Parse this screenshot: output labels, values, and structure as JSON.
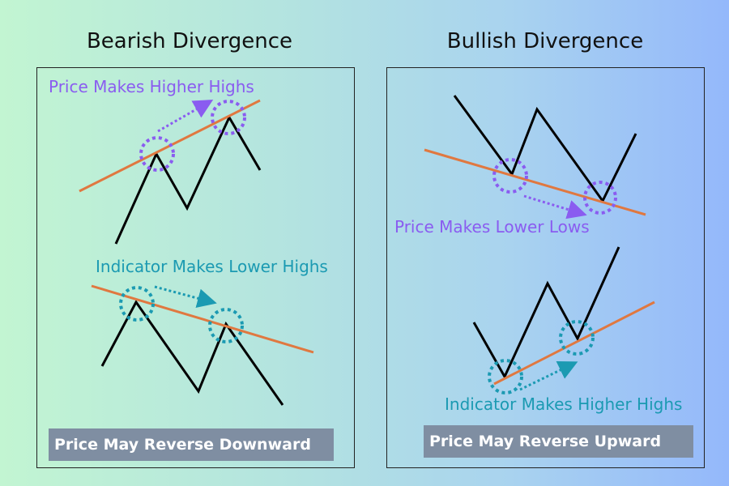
{
  "titles": {
    "left": "Bearish Divergence",
    "right": "Bullish Divergence"
  },
  "labels": {
    "bear_price": "Price Makes Higher Highs",
    "bear_indicator": "Indicator Makes Lower Highs",
    "bull_price": "Price Makes Lower Lows",
    "bull_indicator": "Indicator Makes Higher Highs"
  },
  "conclusions": {
    "left": "Price May Reverse Downward",
    "right": "Price May Reverse Upward"
  },
  "colors": {
    "price_line": "#000000",
    "trend_line": "#e07840",
    "price_annotation": "#8a5cf0",
    "indicator_annotation": "#1b9ab2",
    "badge": "#7f8ea2"
  }
}
